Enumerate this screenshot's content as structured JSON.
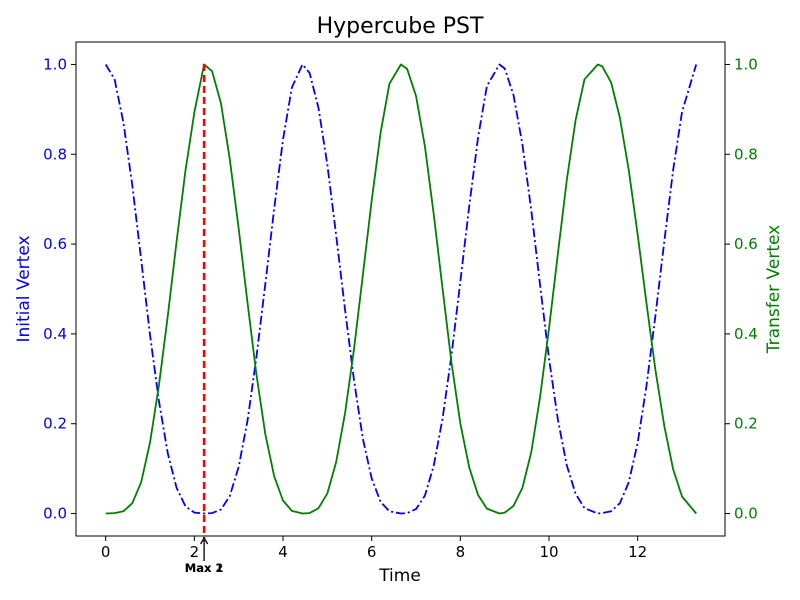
{
  "chart_data": {
    "type": "line",
    "title": "Hypercube PST",
    "xlabel": "Time",
    "ylabel_left": "Initial Vertex",
    "ylabel_right": "Transfer Vertex",
    "xlim": [
      -0.67,
      13.97
    ],
    "ylim": [
      -0.05,
      1.05
    ],
    "xticks": [
      0,
      2,
      4,
      6,
      8,
      10,
      12
    ],
    "yticks": [
      0.0,
      0.2,
      0.4,
      0.6,
      0.8,
      1.0
    ],
    "ytick_labels": [
      "0.0",
      "0.2",
      "0.4",
      "0.6",
      "0.8",
      "1.0"
    ],
    "grid": false,
    "series": [
      {
        "axis": "left",
        "color": "#0000ff",
        "style": "dashdot",
        "x": [
          0,
          0.2,
          0.4,
          0.6,
          0.8,
          1.0,
          1.2,
          1.4,
          1.6,
          1.8,
          2.0,
          2.22,
          2.4,
          2.6,
          2.8,
          3.0,
          3.2,
          3.4,
          3.6,
          3.8,
          4.0,
          4.2,
          4.44,
          4.6,
          4.8,
          5.0,
          5.2,
          5.4,
          5.6,
          5.8,
          6.0,
          6.2,
          6.4,
          6.66,
          6.8,
          7.0,
          7.2,
          7.4,
          7.6,
          7.8,
          8.0,
          8.2,
          8.4,
          8.6,
          8.88,
          9.0,
          9.2,
          9.4,
          9.6,
          9.8,
          10.0,
          10.2,
          10.4,
          10.6,
          10.8,
          11.1,
          11.2,
          11.4,
          11.6,
          11.8,
          12.0,
          12.2,
          12.4,
          12.6,
          12.8,
          13.0,
          13.32
        ],
        "y": [
          1.0,
          0.967,
          0.871,
          0.731,
          0.565,
          0.398,
          0.251,
          0.134,
          0.057,
          0.016,
          0.002,
          0.0,
          0.001,
          0.009,
          0.039,
          0.104,
          0.208,
          0.348,
          0.511,
          0.679,
          0.833,
          0.949,
          1.0,
          0.981,
          0.903,
          0.776,
          0.619,
          0.453,
          0.297,
          0.167,
          0.078,
          0.026,
          0.005,
          0.0,
          0.001,
          0.01,
          0.04,
          0.106,
          0.212,
          0.353,
          0.516,
          0.684,
          0.838,
          0.952,
          1.0,
          0.991,
          0.932,
          0.822,
          0.675,
          0.508,
          0.345,
          0.209,
          0.108,
          0.044,
          0.012,
          0.0,
          0.001,
          0.005,
          0.023,
          0.07,
          0.158,
          0.285,
          0.44,
          0.606,
          0.764,
          0.894,
          1.0
        ]
      },
      {
        "axis": "right",
        "color": "#008000",
        "style": "solid",
        "x": [
          0,
          0.2,
          0.4,
          0.6,
          0.8,
          1.0,
          1.2,
          1.4,
          1.6,
          1.8,
          2.0,
          2.22,
          2.4,
          2.6,
          2.8,
          3.0,
          3.2,
          3.4,
          3.6,
          3.8,
          4.0,
          4.2,
          4.44,
          4.6,
          4.8,
          5.0,
          5.2,
          5.4,
          5.6,
          5.8,
          6.0,
          6.2,
          6.4,
          6.66,
          6.8,
          7.0,
          7.2,
          7.4,
          7.6,
          7.8,
          8.0,
          8.2,
          8.4,
          8.6,
          8.88,
          9.0,
          9.2,
          9.4,
          9.6,
          9.8,
          10.0,
          10.2,
          10.4,
          10.6,
          10.8,
          11.1,
          11.2,
          11.4,
          11.6,
          11.8,
          12.0,
          12.2,
          12.4,
          12.6,
          12.8,
          13.0,
          13.32
        ],
        "y": [
          0.0,
          0.001,
          0.005,
          0.023,
          0.07,
          0.158,
          0.285,
          0.44,
          0.606,
          0.764,
          0.894,
          1.0,
          0.985,
          0.913,
          0.789,
          0.634,
          0.468,
          0.31,
          0.177,
          0.083,
          0.029,
          0.006,
          0.0,
          0.001,
          0.012,
          0.045,
          0.115,
          0.224,
          0.366,
          0.53,
          0.697,
          0.848,
          0.957,
          1.0,
          0.99,
          0.93,
          0.818,
          0.667,
          0.5,
          0.336,
          0.201,
          0.103,
          0.041,
          0.011,
          0.0,
          0.002,
          0.017,
          0.057,
          0.137,
          0.26,
          0.412,
          0.579,
          0.741,
          0.876,
          0.967,
          1.0,
          0.996,
          0.96,
          0.881,
          0.764,
          0.621,
          0.468,
          0.32,
          0.195,
          0.099,
          0.038,
          0.0
        ]
      }
    ],
    "vline": {
      "x": 2.22,
      "color": "#ff0000",
      "style": "dashed"
    },
    "annotations": [
      {
        "text": "Max 1",
        "x": 2.22,
        "arrow": true
      },
      {
        "text": "Max 2",
        "x": 2.22,
        "arrow": false
      }
    ],
    "colors": {
      "left_axis": "#0000ff",
      "right_axis": "#008000",
      "frame": "#000000"
    }
  }
}
